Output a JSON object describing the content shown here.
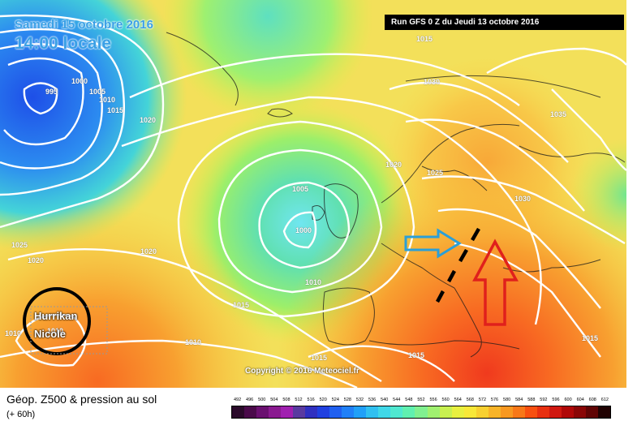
{
  "map": {
    "date_text": "Samedi 15 octobre 2016",
    "time_text": "14:00 locale",
    "run_text": "Run GFS 0 Z du Jeudi 13 octobre 2016",
    "copyright": "Copyright © 2016 Meteociel.fr",
    "hurricane_line1": "Hurrikan",
    "hurricane_line2": "Nicole",
    "isobars": [
      {
        "label": "995"
      },
      {
        "label": "1000"
      },
      {
        "label": "1005"
      },
      {
        "label": "1010"
      },
      {
        "label": "1015"
      },
      {
        "label": "1020"
      },
      {
        "label": "1015"
      },
      {
        "label": "1030"
      },
      {
        "label": "1035"
      },
      {
        "label": "1020"
      },
      {
        "label": "1025"
      },
      {
        "label": "1030"
      },
      {
        "label": "1005"
      },
      {
        "label": "1000"
      },
      {
        "label": "1020"
      },
      {
        "label": "1025"
      },
      {
        "label": "1020"
      },
      {
        "label": "1010"
      },
      {
        "label": "1015"
      },
      {
        "label": "1010"
      },
      {
        "label": "1015"
      },
      {
        "label": "1015"
      },
      {
        "label": "1015"
      },
      {
        "label": "1010"
      },
      {
        "label": "1010"
      }
    ],
    "annotation_colors": {
      "blue_arrow": "#2a9fd8",
      "red_arrow": "#e0201c",
      "front_line": "#000000"
    }
  },
  "footer": {
    "title": "Géop. Z500 & pression au sol",
    "subtitle": "(+ 60h)"
  },
  "legend": {
    "labels": [
      "492",
      "496",
      "500",
      "504",
      "508",
      "512",
      "516",
      "520",
      "524",
      "528",
      "532",
      "536",
      "540",
      "544",
      "548",
      "552",
      "556",
      "560",
      "564",
      "568",
      "572",
      "576",
      "580",
      "584",
      "588",
      "592",
      "596",
      "600",
      "604",
      "608",
      "612"
    ],
    "colors": [
      "#2a0a2a",
      "#4a0a4a",
      "#6a1070",
      "#8a1a90",
      "#a020b0",
      "#5a3aa0",
      "#3030c0",
      "#2040e0",
      "#2060f0",
      "#2080f8",
      "#20a0f8",
      "#30c0f0",
      "#40d8e8",
      "#50e8d0",
      "#60f0b0",
      "#80f090",
      "#a0f070",
      "#c8f050",
      "#e8f040",
      "#f8e838",
      "#f8d030",
      "#f8b428",
      "#f89820",
      "#f87818",
      "#f85010",
      "#e83010",
      "#d01810",
      "#b00808",
      "#8a0606",
      "#600404",
      "#200202"
    ]
  }
}
